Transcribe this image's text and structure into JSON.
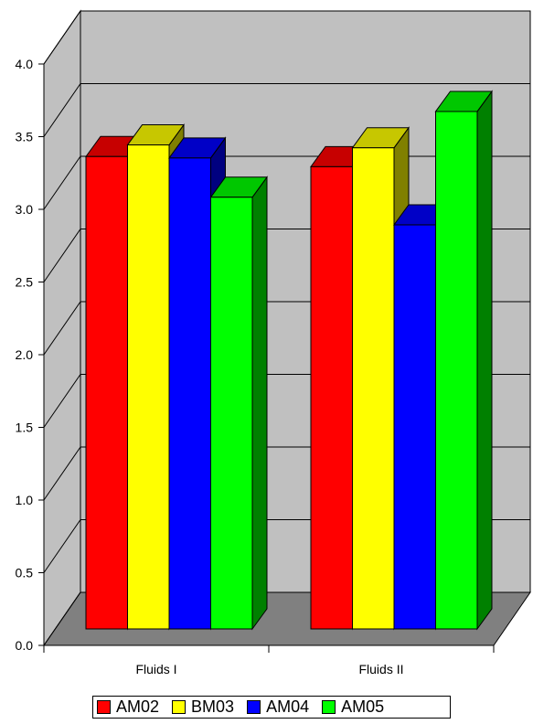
{
  "chart_data": {
    "type": "bar",
    "categories": [
      "Fluids I",
      "Fluids II"
    ],
    "series": [
      {
        "name": "AM02",
        "values": [
          3.25,
          3.18
        ],
        "color": "#ff0000"
      },
      {
        "name": "BM03",
        "values": [
          3.33,
          3.31
        ],
        "color": "#ffff00"
      },
      {
        "name": "AM04",
        "values": [
          3.24,
          2.78
        ],
        "color": "#0000ff"
      },
      {
        "name": "AM05",
        "values": [
          2.97,
          3.56
        ],
        "color": "#00ff00"
      }
    ],
    "ylim": [
      0,
      4
    ],
    "yticks": [
      "0.0",
      "0.5",
      "1.0",
      "1.5",
      "2.0",
      "2.5",
      "3.0",
      "3.5",
      "4.0"
    ],
    "grid": true,
    "legend_position": "bottom",
    "style": "3d-clustered-column"
  }
}
